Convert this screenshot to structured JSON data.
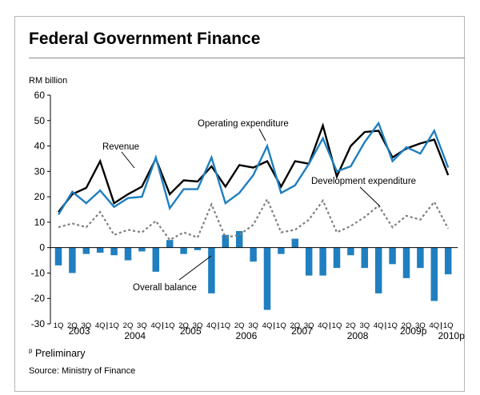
{
  "page": {
    "title": "Federal Government Finance",
    "footnote_mark": "p",
    "footnote_text": "Preliminary",
    "source": "Source: Ministry of Finance"
  },
  "chart_data": {
    "type": "line",
    "unit_label": "RM billion",
    "ylim": [
      -30,
      60
    ],
    "yticks": [
      60,
      50,
      40,
      30,
      20,
      10,
      0,
      -10,
      -20,
      -30
    ],
    "grid": false,
    "quarters": [
      "1Q",
      "2Q",
      "3Q",
      "4Q",
      "1Q",
      "2Q",
      "3Q",
      "4Q",
      "1Q",
      "2Q",
      "3Q",
      "4Q",
      "1Q",
      "2Q",
      "3Q",
      "4Q",
      "1Q",
      "2Q",
      "3Q",
      "4Q",
      "1Q",
      "2Q",
      "3Q",
      "4Q",
      "1Q",
      "2Q",
      "3Q",
      "4Q",
      "1Q"
    ],
    "years": [
      {
        "label": "2003",
        "start": 0,
        "count": 4
      },
      {
        "label": "2004",
        "start": 4,
        "count": 4
      },
      {
        "label": "2005",
        "start": 8,
        "count": 4
      },
      {
        "label": "2006",
        "start": 12,
        "count": 4
      },
      {
        "label": "2007",
        "start": 16,
        "count": 4
      },
      {
        "label": "2008",
        "start": 20,
        "count": 4
      },
      {
        "label": "2009p",
        "start": 24,
        "count": 4
      },
      {
        "label": "2010p",
        "start": 28,
        "count": 1
      }
    ],
    "series": [
      {
        "name": "Revenue",
        "type": "line",
        "color": "#000000",
        "values": [
          14,
          21,
          23.5,
          34,
          17.5,
          21,
          24,
          35,
          21,
          26.5,
          26,
          32,
          24,
          32.5,
          31.5,
          34,
          24,
          34,
          33,
          48,
          28,
          40,
          45.5,
          46,
          35.5,
          39,
          41,
          42.5,
          28.5
        ]
      },
      {
        "name": "Operating expenditure",
        "type": "line",
        "color": "#1f7fc0",
        "values": [
          13,
          22,
          17.5,
          22.5,
          16,
          19.5,
          20,
          35.5,
          15.5,
          23,
          23,
          35.5,
          17.5,
          21.5,
          28.5,
          40,
          21.5,
          24.5,
          33,
          43,
          30,
          32,
          41.5,
          49,
          34,
          39.5,
          37,
          46,
          31.5
        ]
      },
      {
        "name": "Development expenditure",
        "type": "line",
        "color": "#7f7f7f",
        "dash": "dotted",
        "values": [
          8,
          9.5,
          8,
          14,
          5,
          7,
          6,
          10.5,
          3,
          6,
          4,
          17,
          4,
          5,
          9,
          19,
          6,
          7,
          11,
          18.5,
          6,
          8.5,
          12,
          16.5,
          8,
          12.5,
          11,
          18,
          7.5
        ]
      },
      {
        "name": "Overall balance",
        "type": "bar",
        "color": "#1f7fc0",
        "values": [
          -7,
          -10,
          -2.5,
          -2,
          -3,
          -5,
          -1.5,
          -9.5,
          3,
          -2.5,
          -1,
          -18,
          5,
          6.5,
          -5.5,
          -24.5,
          -2.5,
          3.5,
          -11,
          -11,
          -8,
          -3,
          -8,
          -18,
          -6.5,
          -12,
          -8,
          -21,
          -10.5
        ]
      }
    ],
    "annotations": [
      {
        "text": "Revenue"
      },
      {
        "text": "Operating expenditure"
      },
      {
        "text": "Development expenditure"
      },
      {
        "text": "Overall balance"
      }
    ]
  }
}
